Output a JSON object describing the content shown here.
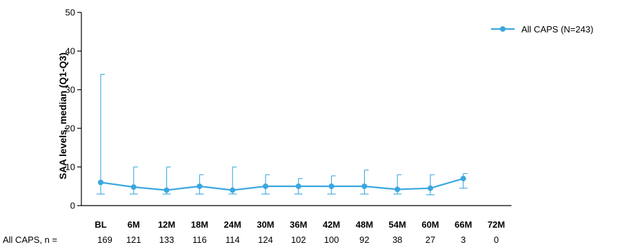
{
  "chart_data": {
    "type": "line",
    "ylabel": "SAA levels, median (Q1-Q3)",
    "ylim": [
      0,
      50
    ],
    "yticks": [
      0,
      10,
      20,
      30,
      40,
      50
    ],
    "categories": [
      "BL",
      "6M",
      "12M",
      "18M",
      "24M",
      "30M",
      "36M",
      "42M",
      "48M",
      "54M",
      "60M",
      "66M",
      "72M"
    ],
    "series": [
      {
        "name": "All CAPS (N=243)",
        "color": "#3aa7e0",
        "median": [
          6,
          4.8,
          4,
          5,
          4,
          5,
          5,
          5,
          5,
          4.2,
          4.5,
          7,
          null
        ],
        "q1": [
          3,
          3,
          3,
          3,
          3,
          3,
          3,
          3,
          3,
          3,
          2.8,
          4.5,
          null
        ],
        "q3": [
          34,
          10,
          10,
          8,
          10,
          8,
          7,
          7.7,
          9.2,
          8,
          8,
          8.3,
          null
        ]
      }
    ],
    "legend": {
      "position": "top-right"
    },
    "n_row": {
      "label": "All CAPS, n =",
      "values": [
        "169",
        "121",
        "133",
        "116",
        "114",
        "124",
        "102",
        "100",
        "92",
        "38",
        "27",
        "3",
        "0"
      ]
    }
  }
}
